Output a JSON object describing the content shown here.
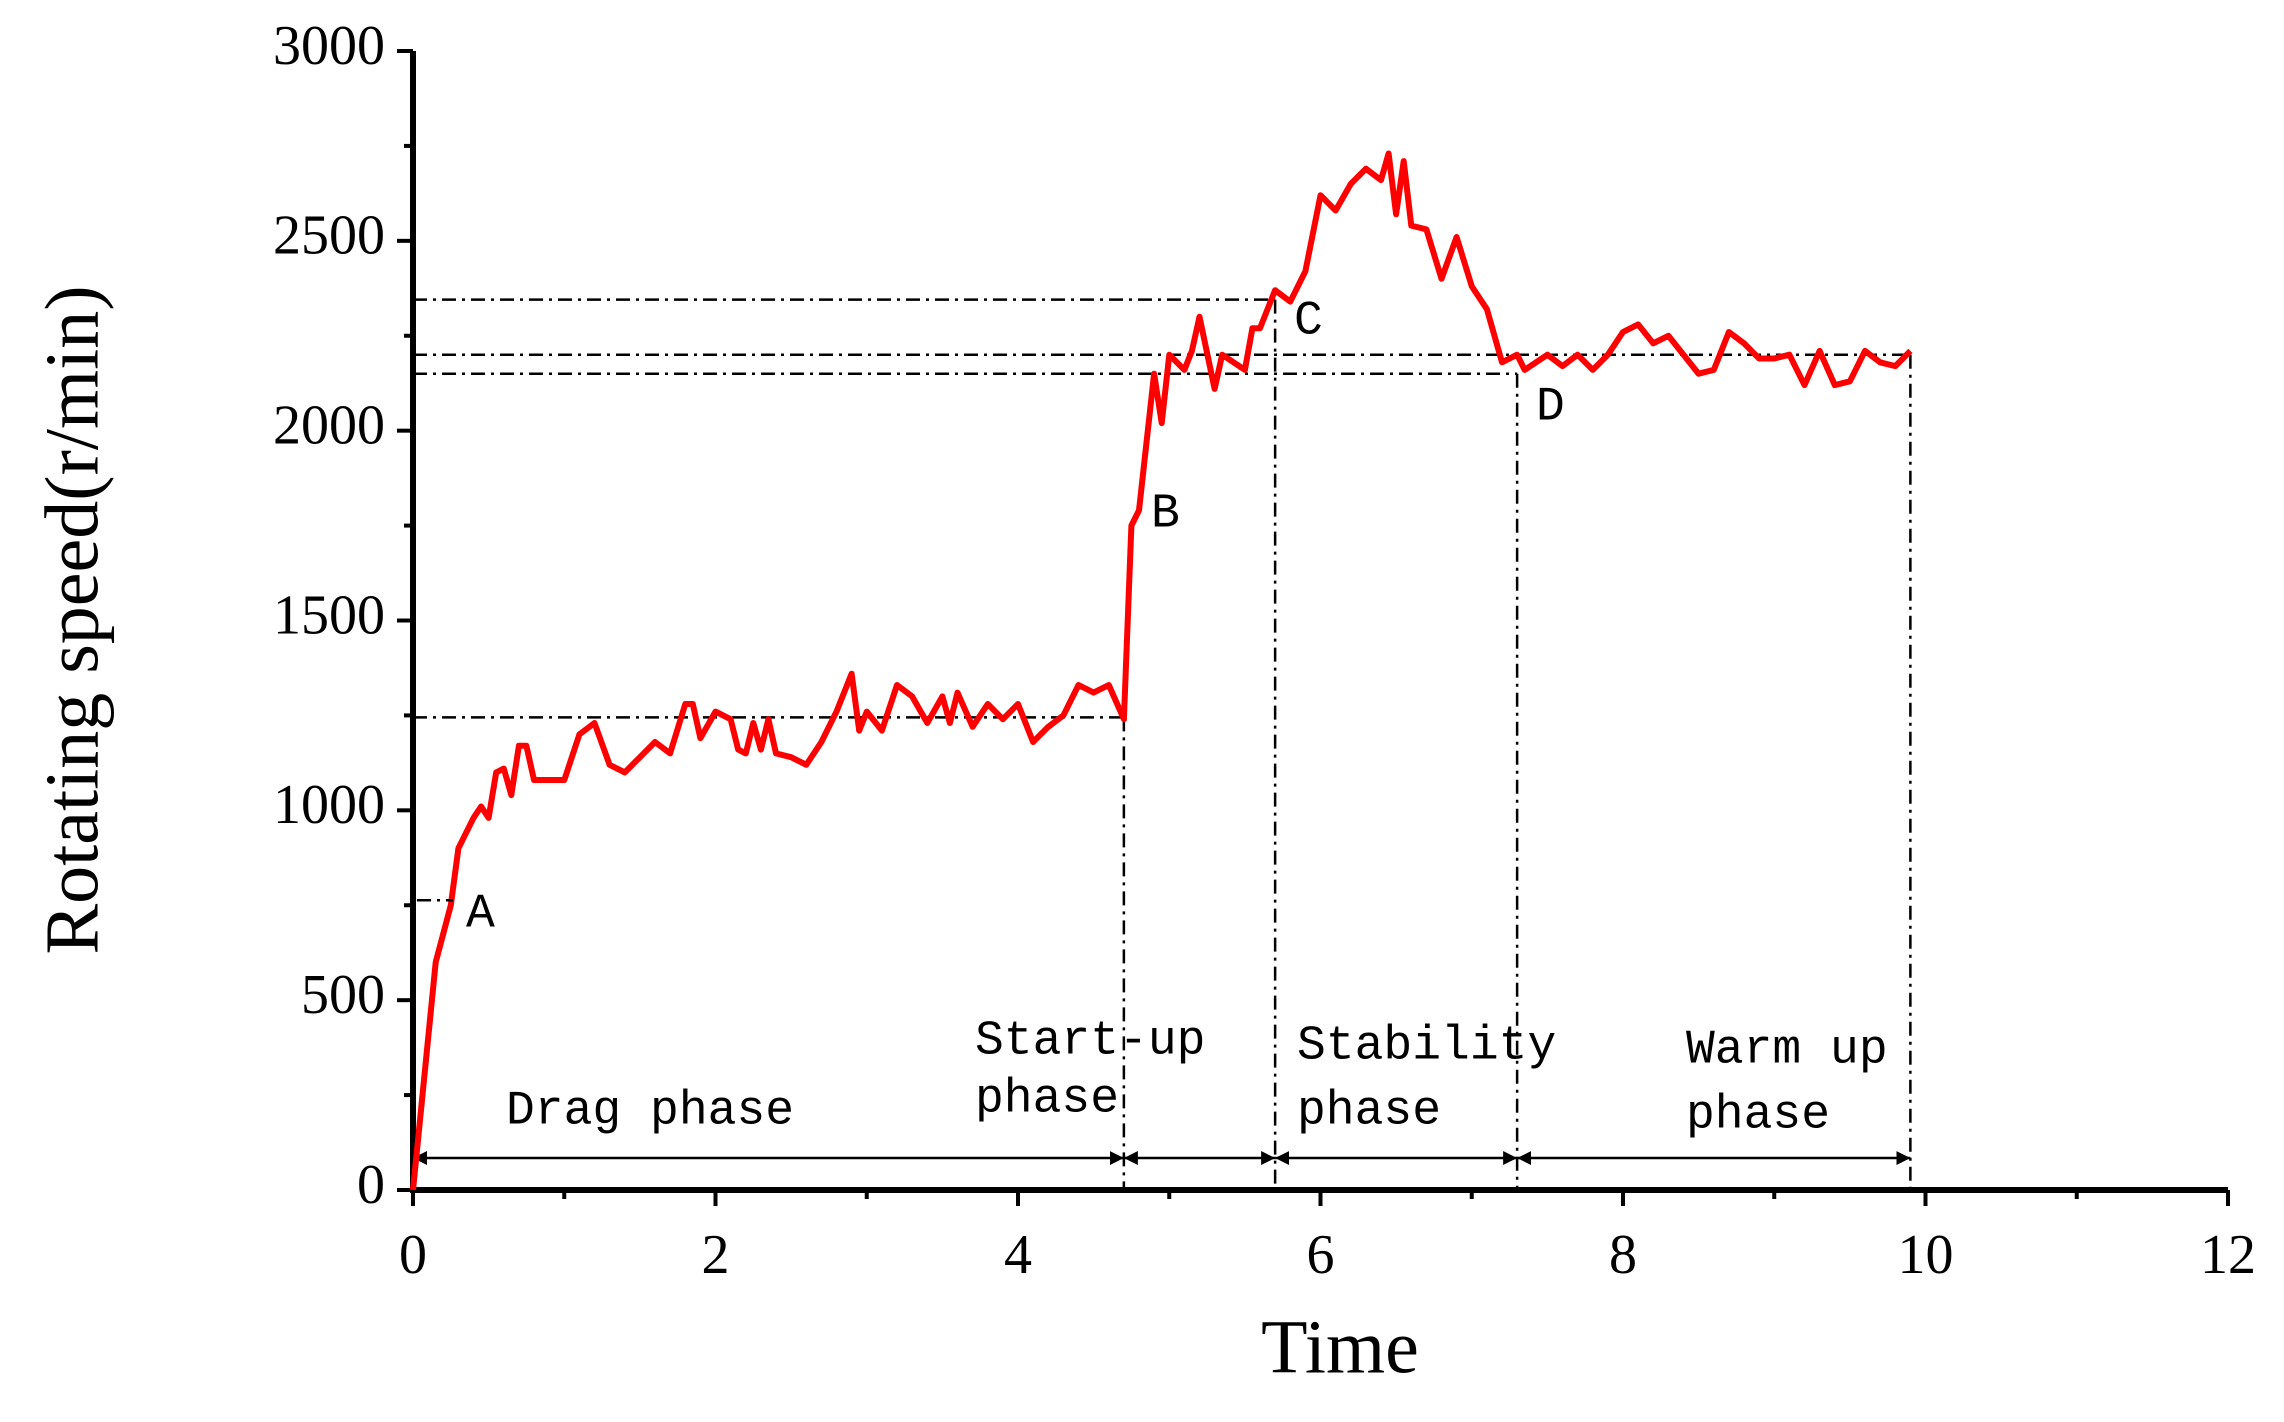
{
  "chart_data": {
    "type": "line",
    "xlabel": "Time",
    "ylabel": "Rotating speed(r/min)",
    "xlim": [
      0,
      12
    ],
    "xticks": [
      0,
      2,
      4,
      6,
      8,
      10,
      12
    ],
    "ylim": [
      0,
      3000
    ],
    "yticks": [
      0,
      500,
      1000,
      1500,
      2000,
      2500,
      3000
    ],
    "series": [
      {
        "color": "#ff0000",
        "x": [
          0,
          0.05,
          0.15,
          0.25,
          0.3,
          0.4,
          0.45,
          0.5,
          0.55,
          0.6,
          0.65,
          0.7,
          0.75,
          0.8,
          0.9,
          1.0,
          1.1,
          1.2,
          1.3,
          1.4,
          1.5,
          1.6,
          1.7,
          1.8,
          1.85,
          1.9,
          2.0,
          2.1,
          2.15,
          2.2,
          2.25,
          2.3,
          2.35,
          2.4,
          2.5,
          2.6,
          2.7,
          2.8,
          2.9,
          2.95,
          3.0,
          3.1,
          3.2,
          3.3,
          3.4,
          3.5,
          3.55,
          3.6,
          3.7,
          3.8,
          3.9,
          4.0,
          4.1,
          4.2,
          4.3,
          4.4,
          4.5,
          4.6,
          4.7,
          4.75,
          4.8,
          4.9,
          4.95,
          5.0,
          5.1,
          5.15,
          5.2,
          5.3,
          5.35,
          5.5,
          5.55,
          5.6,
          5.7,
          5.8,
          5.9,
          6.0,
          6.1,
          6.2,
          6.3,
          6.4,
          6.45,
          6.5,
          6.55,
          6.6,
          6.7,
          6.8,
          6.9,
          7.0,
          7.1,
          7.2,
          7.3,
          7.35,
          7.5,
          7.6,
          7.7,
          7.8,
          7.9,
          8.0,
          8.1,
          8.2,
          8.3,
          8.4,
          8.5,
          8.6,
          8.7,
          8.8,
          8.9,
          9.0,
          9.1,
          9.2,
          9.3,
          9.4,
          9.5,
          9.6,
          9.7,
          9.8,
          9.9
        ],
        "values": [
          0,
          200,
          600,
          750,
          900,
          980,
          1010,
          980,
          1100,
          1110,
          1040,
          1170,
          1170,
          1080,
          1080,
          1080,
          1200,
          1230,
          1120,
          1100,
          1140,
          1180,
          1150,
          1280,
          1280,
          1190,
          1260,
          1240,
          1160,
          1150,
          1230,
          1160,
          1240,
          1150,
          1140,
          1120,
          1180,
          1260,
          1360,
          1210,
          1260,
          1210,
          1330,
          1300,
          1230,
          1300,
          1230,
          1310,
          1220,
          1280,
          1240,
          1280,
          1180,
          1220,
          1250,
          1330,
          1310,
          1330,
          1240,
          1750,
          1790,
          2150,
          2020,
          2200,
          2160,
          2210,
          2300,
          2110,
          2200,
          2160,
          2270,
          2270,
          2370,
          2340,
          2420,
          2620,
          2580,
          2650,
          2690,
          2660,
          2730,
          2570,
          2710,
          2540,
          2530,
          2400,
          2510,
          2380,
          2320,
          2180,
          2200,
          2160,
          2200,
          2170,
          2200,
          2160,
          2200,
          2260,
          2280,
          2230,
          2250,
          2200,
          2150,
          2160,
          2260,
          2230,
          2190,
          2190,
          2200,
          2120,
          2210,
          2120,
          2130,
          2210,
          2180,
          2170,
          2210
        ]
      }
    ],
    "reference_points": [
      {
        "x": 4.7,
        "y": 1245
      },
      {
        "x": 5.7,
        "y": 2345
      },
      {
        "x": 7.3,
        "y": 2150
      },
      {
        "x": 9.9,
        "y": 2200
      }
    ],
    "annotations": [
      "A",
      "B",
      "C",
      "D",
      "Drag phase",
      "Start-up",
      "phase",
      "Stability",
      "phase",
      "Warm up",
      "phase"
    ]
  }
}
